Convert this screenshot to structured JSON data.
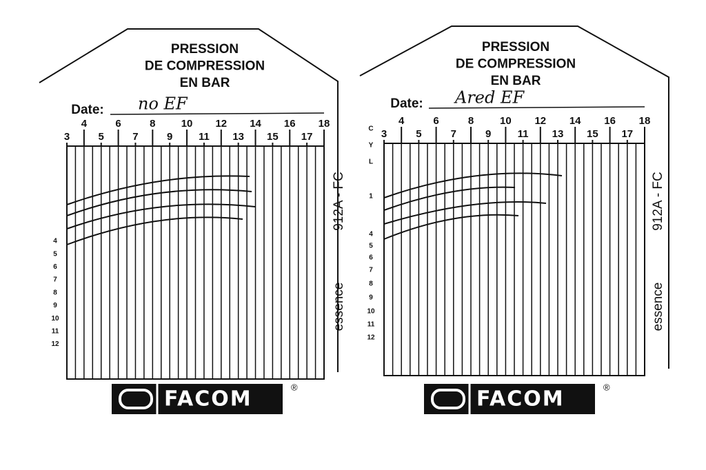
{
  "cards": [
    {
      "title_lines": [
        "PRESSION",
        "DE COMPRESSION",
        "EN BAR"
      ],
      "date_label": "Date:",
      "date_value": "no EF",
      "scale": [
        "3",
        "4",
        "5",
        "6",
        "7",
        "8",
        "9",
        "10",
        "11",
        "12",
        "13",
        "14",
        "15",
        "16",
        "17",
        "18"
      ],
      "row_labels": [
        "4",
        "5",
        "6",
        "7",
        "8",
        "9",
        "10",
        "11",
        "12"
      ],
      "model": "912A - FC",
      "fuel": "essence",
      "brand": "FACOM",
      "brand_mark": "®"
    },
    {
      "title_lines": [
        "PRESSION",
        "DE COMPRESSION",
        "EN BAR"
      ],
      "date_label": "Date:",
      "date_value": "Ared EF",
      "scale": [
        "3",
        "4",
        "5",
        "6",
        "7",
        "8",
        "9",
        "10",
        "11",
        "12",
        "13",
        "14",
        "15",
        "16",
        "17",
        "18"
      ],
      "row_labels": [
        "C",
        "Y",
        "L",
        "1",
        "4",
        "5",
        "6",
        "7",
        "8",
        "9",
        "10",
        "11",
        "12"
      ],
      "model": "912A - FC",
      "fuel": "essence",
      "brand": "FACOM",
      "brand_mark": "®"
    }
  ]
}
